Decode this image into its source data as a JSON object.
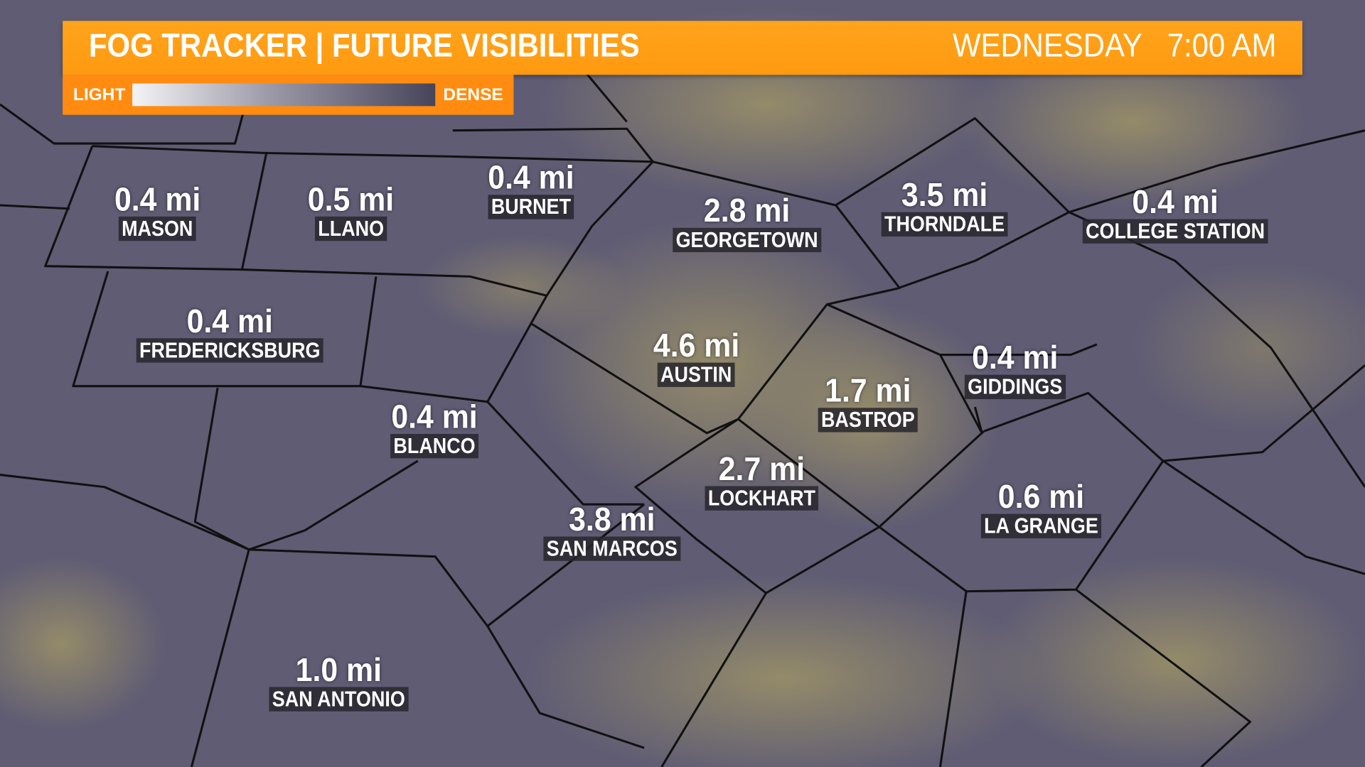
{
  "header": {
    "title": "FOG TRACKER | FUTURE VISIBILITIES",
    "day": "WEDNESDAY",
    "time": "7:00 AM",
    "accent": "#ffa41c"
  },
  "legend": {
    "low_label": "LIGHT",
    "high_label": "DENSE"
  },
  "cities": [
    {
      "name": "MASON",
      "visibility": "0.4 mi"
    },
    {
      "name": "LLANO",
      "visibility": "0.5 mi"
    },
    {
      "name": "BURNET",
      "visibility": "0.4 mi"
    },
    {
      "name": "GEORGETOWN",
      "visibility": "2.8 mi"
    },
    {
      "name": "THORNDALE",
      "visibility": "3.5 mi"
    },
    {
      "name": "COLLEGE STATION",
      "visibility": "0.4 mi"
    },
    {
      "name": "FREDERICKSBURG",
      "visibility": "0.4 mi"
    },
    {
      "name": "AUSTIN",
      "visibility": "4.6 mi"
    },
    {
      "name": "GIDDINGS",
      "visibility": "0.4 mi"
    },
    {
      "name": "BASTROP",
      "visibility": "1.7 mi"
    },
    {
      "name": "BLANCO",
      "visibility": "0.4 mi"
    },
    {
      "name": "LOCKHART",
      "visibility": "2.7 mi"
    },
    {
      "name": "LA GRANGE",
      "visibility": "0.6 mi"
    },
    {
      "name": "SAN MARCOS",
      "visibility": "3.8 mi"
    },
    {
      "name": "SAN ANTONIO",
      "visibility": "1.0 mi"
    }
  ]
}
